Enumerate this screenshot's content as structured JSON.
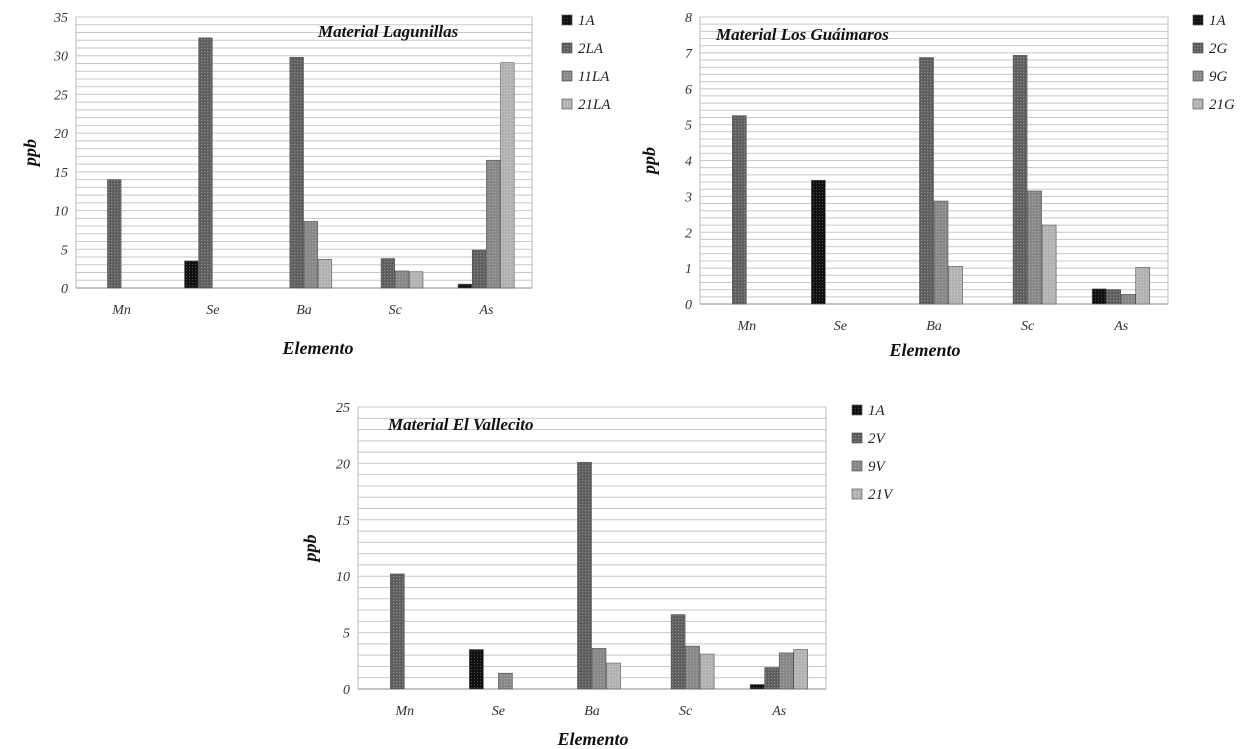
{
  "chart_data": [
    {
      "type": "bar",
      "title": "Material Lagunillas",
      "xlabel": "Elemento",
      "ylabel": "ppb",
      "categories": [
        "Mn",
        "Se",
        "Ba",
        "Sc",
        "As"
      ],
      "ylim": [
        0,
        35
      ],
      "yticks": [
        "0",
        "5",
        "10",
        "15",
        "20",
        "25",
        "30",
        "35"
      ],
      "grid": true,
      "legend_position": "right",
      "series": [
        {
          "name": "1A",
          "values": [
            0,
            3.5,
            0,
            0,
            0.5
          ]
        },
        {
          "name": "2LA",
          "values": [
            14,
            32.3,
            29.8,
            3.8,
            4.9
          ]
        },
        {
          "name": "11LA",
          "values": [
            0,
            0,
            8.6,
            2.2,
            16.5
          ]
        },
        {
          "name": "21LA",
          "values": [
            0,
            0,
            3.7,
            2.1,
            29.1
          ]
        }
      ]
    },
    {
      "type": "bar",
      "title": "Material Los Guáimaros",
      "xlabel": "Elemento",
      "ylabel": "ppb",
      "categories": [
        "Mn",
        "Se",
        "Ba",
        "Sc",
        "As"
      ],
      "ylim": [
        0,
        8
      ],
      "yticks": [
        "0",
        "1",
        "2",
        "3",
        "4",
        "5",
        "6",
        "7",
        "8"
      ],
      "grid": true,
      "legend_position": "right",
      "series": [
        {
          "name": "1A",
          "values": [
            0,
            3.45,
            0,
            0,
            0.42
          ]
        },
        {
          "name": "2G",
          "values": [
            5.25,
            0,
            6.87,
            6.93,
            0.4
          ]
        },
        {
          "name": "9G",
          "values": [
            0,
            0,
            2.87,
            3.15,
            0.27
          ]
        },
        {
          "name": "21G",
          "values": [
            0,
            0,
            1.05,
            2.2,
            1.02
          ]
        }
      ]
    },
    {
      "type": "bar",
      "title": "Material El Vallecito",
      "xlabel": "Elemento",
      "ylabel": "ppb",
      "categories": [
        "Mn",
        "Se",
        "Ba",
        "Sc",
        "As"
      ],
      "ylim": [
        0,
        25
      ],
      "yticks": [
        "0",
        "5",
        "10",
        "15",
        "20",
        "25"
      ],
      "grid": true,
      "legend_position": "right",
      "series": [
        {
          "name": "1A",
          "values": [
            0,
            3.5,
            0,
            0,
            0.4
          ]
        },
        {
          "name": "2V",
          "values": [
            10.2,
            0,
            20.1,
            6.6,
            1.9
          ]
        },
        {
          "name": "9V",
          "values": [
            0,
            1.4,
            3.6,
            3.8,
            3.2
          ]
        },
        {
          "name": "21V",
          "values": [
            0,
            0,
            2.3,
            3.1,
            3.5
          ]
        }
      ]
    }
  ],
  "series_colors": [
    "#1a1a1a",
    "#6e6e6e",
    "#8c8c8c",
    "#b4b4b4"
  ]
}
